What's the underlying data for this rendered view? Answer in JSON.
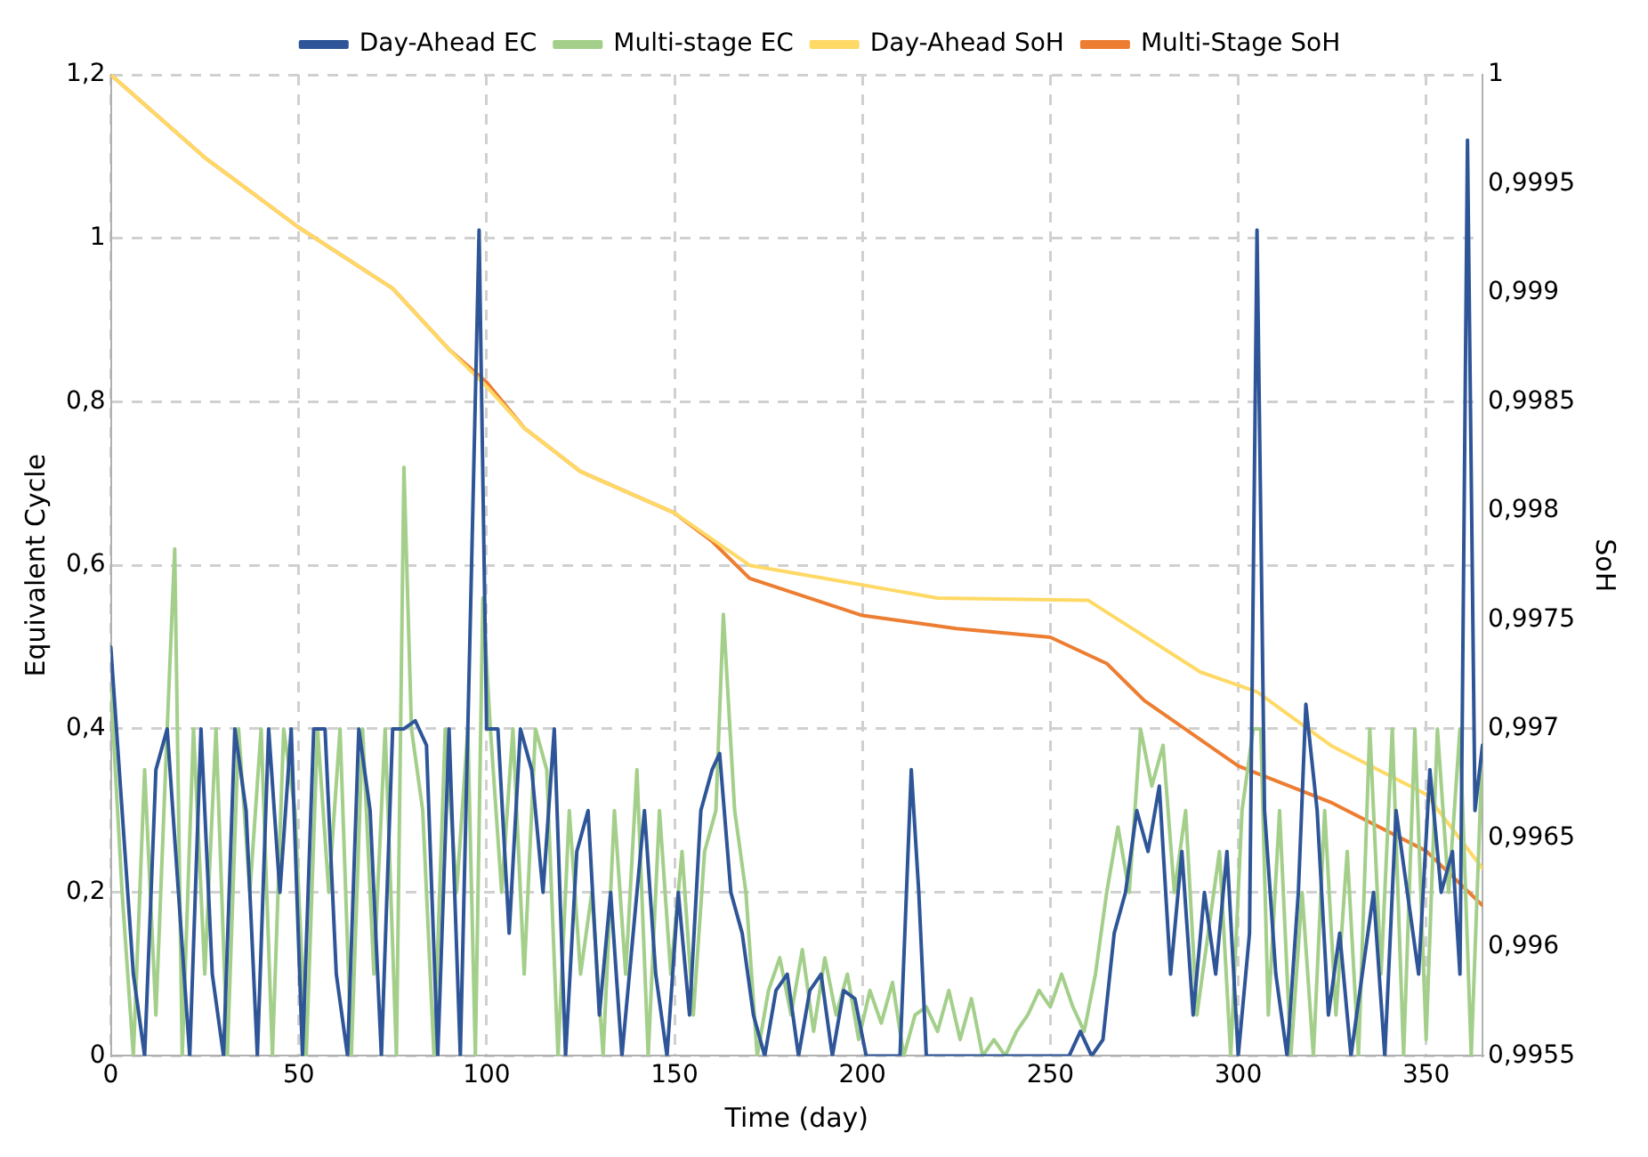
{
  "chart_data": {
    "type": "line",
    "xlabel": "Time (day)",
    "ylabel": "Equivalent Cycle",
    "y2label": "SoH",
    "legend": "top",
    "grid": true,
    "marker": "none",
    "line_style": "solid",
    "xlim": [
      0,
      365
    ],
    "xticks": [
      0,
      50,
      100,
      150,
      200,
      250,
      300,
      350
    ],
    "ylim": [
      0,
      1.2
    ],
    "yticks": [
      0,
      {
        "value": 0.2,
        "label": "0,2"
      },
      {
        "value": 0.4,
        "label": "0,4"
      },
      {
        "value": 0.6,
        "label": "0,6"
      },
      {
        "value": 0.8,
        "label": "0,8"
      },
      1,
      {
        "value": 1.2,
        "label": "1,2"
      }
    ],
    "y2lim": [
      0.9955,
      1
    ],
    "y2ticks": [
      {
        "value": 0.9955,
        "label": "0,9955"
      },
      {
        "value": 0.996,
        "label": "0,996"
      },
      {
        "value": 0.9965,
        "label": "0,9965"
      },
      {
        "value": 0.997,
        "label": "0,997"
      },
      {
        "value": 0.9975,
        "label": "0,9975"
      },
      {
        "value": 0.998,
        "label": "0,998"
      },
      {
        "value": 0.9985,
        "label": "0,9985"
      },
      {
        "value": 0.999,
        "label": "0,999"
      },
      {
        "value": 0.9995,
        "label": "0,9995"
      },
      1
    ],
    "series": [
      {
        "name": "Day-Ahead EC",
        "color": "#2e5597",
        "x": [
          0,
          3,
          6,
          9,
          12,
          15,
          18,
          21,
          24,
          27,
          30,
          33,
          36,
          39,
          42,
          45,
          48,
          51,
          54,
          57,
          60,
          63,
          66,
          69,
          72,
          75,
          78,
          81,
          84,
          87,
          90,
          93,
          96,
          98,
          100,
          103,
          106,
          109,
          112,
          115,
          118,
          121,
          124,
          127,
          130,
          133,
          136,
          139,
          142,
          145,
          148,
          151,
          154,
          157,
          160,
          162,
          165,
          168,
          171,
          174,
          177,
          180,
          183,
          186,
          189,
          192,
          195,
          198,
          201,
          210,
          213,
          215,
          217,
          240,
          255,
          258,
          261,
          264,
          267,
          270,
          273,
          276,
          279,
          282,
          285,
          288,
          291,
          294,
          297,
          300,
          303,
          305,
          307,
          310,
          313,
          316,
          318,
          321,
          324,
          327,
          330,
          333,
          336,
          339,
          342,
          345,
          348,
          351,
          354,
          357,
          359,
          361,
          363,
          365
        ],
        "values": [
          0.5,
          0.3,
          0.1,
          0,
          0.35,
          0.4,
          0.2,
          0,
          0.4,
          0.1,
          0,
          0.4,
          0.3,
          0,
          0.4,
          0.2,
          0.4,
          0,
          0.4,
          0.4,
          0.1,
          0,
          0.4,
          0.3,
          0,
          0.4,
          0.4,
          0.41,
          0.38,
          0,
          0.4,
          0,
          0.6,
          1.01,
          0.4,
          0.4,
          0.15,
          0.4,
          0.35,
          0.2,
          0.4,
          0,
          0.25,
          0.3,
          0.05,
          0.2,
          0,
          0.15,
          0.3,
          0.1,
          0,
          0.2,
          0.05,
          0.3,
          0.35,
          0.37,
          0.2,
          0.15,
          0.05,
          0,
          0.08,
          0.1,
          0,
          0.08,
          0.1,
          0,
          0.08,
          0.07,
          0,
          0,
          0.35,
          0.2,
          0,
          0,
          0,
          0.03,
          0,
          0.02,
          0.15,
          0.2,
          0.3,
          0.25,
          0.33,
          0.1,
          0.25,
          0.05,
          0.2,
          0.1,
          0.25,
          0,
          0.15,
          1.01,
          0.3,
          0.1,
          0,
          0.2,
          0.43,
          0.3,
          0.05,
          0.15,
          0,
          0.1,
          0.2,
          0,
          0.3,
          0.2,
          0.1,
          0.35,
          0.2,
          0.25,
          0.1,
          1.12,
          0.3,
          0.38
        ]
      },
      {
        "name": "Multi-stage EC",
        "color": "#a3cf8a",
        "x": [
          0,
          3,
          6,
          9,
          12,
          15,
          17,
          19,
          22,
          25,
          28,
          31,
          34,
          37,
          40,
          43,
          46,
          49,
          52,
          55,
          58,
          61,
          64,
          67,
          70,
          73,
          76,
          78,
          80,
          83,
          86,
          89,
          92,
          95,
          97,
          99,
          101,
          104,
          107,
          110,
          113,
          116,
          119,
          122,
          125,
          128,
          131,
          134,
          137,
          140,
          143,
          146,
          149,
          152,
          155,
          158,
          161,
          163,
          166,
          169,
          172,
          175,
          178,
          181,
          184,
          187,
          190,
          193,
          196,
          199,
          202,
          205,
          208,
          211,
          214,
          217,
          220,
          223,
          226,
          229,
          232,
          235,
          238,
          241,
          244,
          247,
          250,
          253,
          256,
          259,
          262,
          265,
          268,
          271,
          274,
          277,
          280,
          283,
          286,
          289,
          292,
          295,
          298,
          301,
          304,
          306,
          308,
          311,
          314,
          317,
          320,
          323,
          326,
          329,
          332,
          335,
          338,
          341,
          344,
          347,
          350,
          353,
          356,
          359,
          362,
          365
        ],
        "values": [
          0.45,
          0.2,
          0,
          0.35,
          0.05,
          0.4,
          0.62,
          0,
          0.4,
          0.1,
          0.4,
          0,
          0.4,
          0.2,
          0.4,
          0,
          0.4,
          0.3,
          0,
          0.4,
          0.2,
          0.4,
          0,
          0.4,
          0.1,
          0.4,
          0,
          0.72,
          0.4,
          0.3,
          0,
          0.4,
          0.2,
          0.4,
          0,
          0.56,
          0.4,
          0.2,
          0.4,
          0.1,
          0.4,
          0.35,
          0,
          0.3,
          0.1,
          0.2,
          0,
          0.3,
          0.1,
          0.35,
          0,
          0.3,
          0.1,
          0.25,
          0.05,
          0.25,
          0.3,
          0.54,
          0.3,
          0.2,
          0,
          0.08,
          0.12,
          0.05,
          0.13,
          0.03,
          0.12,
          0.05,
          0.1,
          0.02,
          0.08,
          0.04,
          0.09,
          0,
          0.05,
          0.06,
          0.03,
          0.08,
          0.02,
          0.07,
          0,
          0.02,
          0,
          0.03,
          0.05,
          0.08,
          0.06,
          0.1,
          0.06,
          0.03,
          0.1,
          0.2,
          0.28,
          0.2,
          0.4,
          0.33,
          0.38,
          0.2,
          0.3,
          0.05,
          0.15,
          0.25,
          0,
          0.3,
          0.4,
          0.4,
          0.05,
          0.3,
          0,
          0.2,
          0,
          0.3,
          0.05,
          0.25,
          0,
          0.4,
          0.1,
          0.4,
          0,
          0.4,
          0.02,
          0.4,
          0.2,
          0.4,
          0,
          0.38
        ]
      },
      {
        "name": "Day-Ahead SoH",
        "color": "#ffd966",
        "axis": "y2",
        "x": [
          0,
          25,
          50,
          75,
          90,
          100,
          110,
          125,
          150,
          160,
          170,
          200,
          210,
          220,
          260,
          270,
          290,
          305,
          325,
          350,
          365
        ],
        "values": [
          1,
          0.99962,
          0.9993,
          0.99902,
          0.99874,
          0.99857,
          0.99838,
          0.99818,
          0.99799,
          0.99787,
          0.99775,
          0.99766,
          0.99763,
          0.9976,
          0.99759,
          0.99748,
          0.99726,
          0.99717,
          0.99692,
          0.9967,
          0.99636
        ]
      },
      {
        "name": "Multi-Stage SoH",
        "color": "#ed7d31",
        "axis": "y2",
        "x": [
          0,
          25,
          50,
          75,
          90,
          100,
          110,
          125,
          150,
          160,
          170,
          200,
          225,
          250,
          265,
          275,
          300,
          325,
          350,
          365
        ],
        "values": [
          1,
          0.99962,
          0.9993,
          0.99902,
          0.99874,
          0.99859,
          0.99838,
          0.99818,
          0.99799,
          0.99786,
          0.99769,
          0.99752,
          0.99746,
          0.99742,
          0.9973,
          0.99713,
          0.99683,
          0.99666,
          0.99644,
          0.99619
        ]
      }
    ]
  }
}
